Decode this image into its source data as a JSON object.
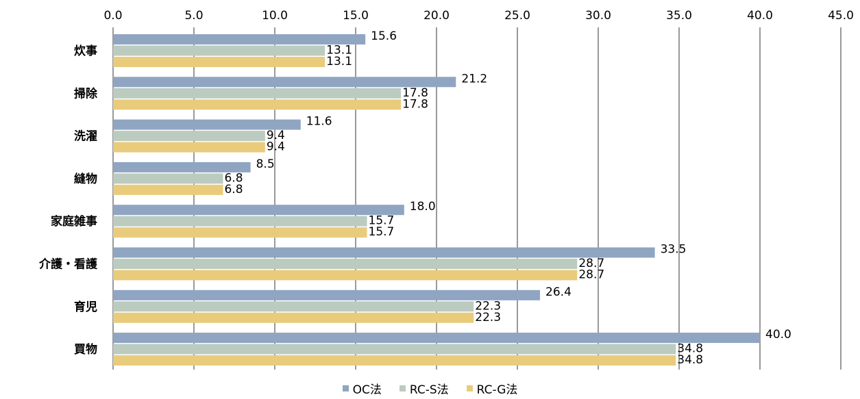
{
  "chart_data": {
    "type": "bar",
    "orientation": "horizontal",
    "categories": [
      "炊事",
      "掃除",
      "洗濯",
      "縫物",
      "家庭雑事",
      "介護・看護",
      "育児",
      "買物"
    ],
    "series": [
      {
        "name": "OC法",
        "color": "#8fa5c2",
        "values": [
          15.6,
          21.2,
          11.6,
          8.5,
          18.0,
          33.5,
          26.4,
          40.0
        ]
      },
      {
        "name": "RC-S法",
        "color": "#bccbbf",
        "values": [
          13.1,
          17.8,
          9.4,
          6.8,
          15.7,
          28.7,
          22.3,
          34.8
        ]
      },
      {
        "name": "RC-G法",
        "color": "#e9cb7c",
        "values": [
          13.1,
          17.8,
          9.4,
          6.8,
          15.7,
          28.7,
          22.3,
          34.8
        ]
      }
    ],
    "xlim": [
      0,
      45
    ],
    "xticks": [
      "0.0",
      "5.0",
      "10.0",
      "15.0",
      "20.0",
      "25.0",
      "30.0",
      "35.0",
      "40.0",
      "45.0"
    ],
    "axis_position": "top",
    "grid": true,
    "legend": "bottom"
  }
}
